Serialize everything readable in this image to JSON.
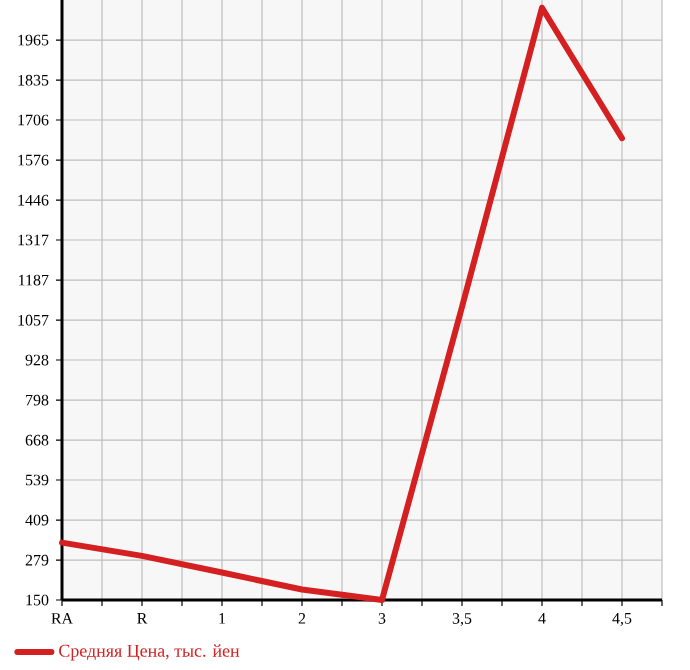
{
  "chart_data": {
    "type": "line",
    "categories": [
      "RA",
      "R",
      "1",
      "2",
      "3",
      "3,5",
      "4",
      "4,5"
    ],
    "series": [
      {
        "name": "Средняя Цена, тыс. йен",
        "color": "#d42020",
        "values": [
          336,
          293,
          239,
          184,
          150,
          1100,
          2070,
          1647
        ]
      }
    ],
    "ylim": [
      150,
      2095
    ],
    "yticks": [
      150,
      279,
      409,
      539,
      668,
      798,
      928,
      1057,
      1187,
      1317,
      1446,
      1576,
      1706,
      1835,
      1965
    ],
    "grid": true,
    "legend": "bottom",
    "marker": "none",
    "line_style": "solid"
  }
}
